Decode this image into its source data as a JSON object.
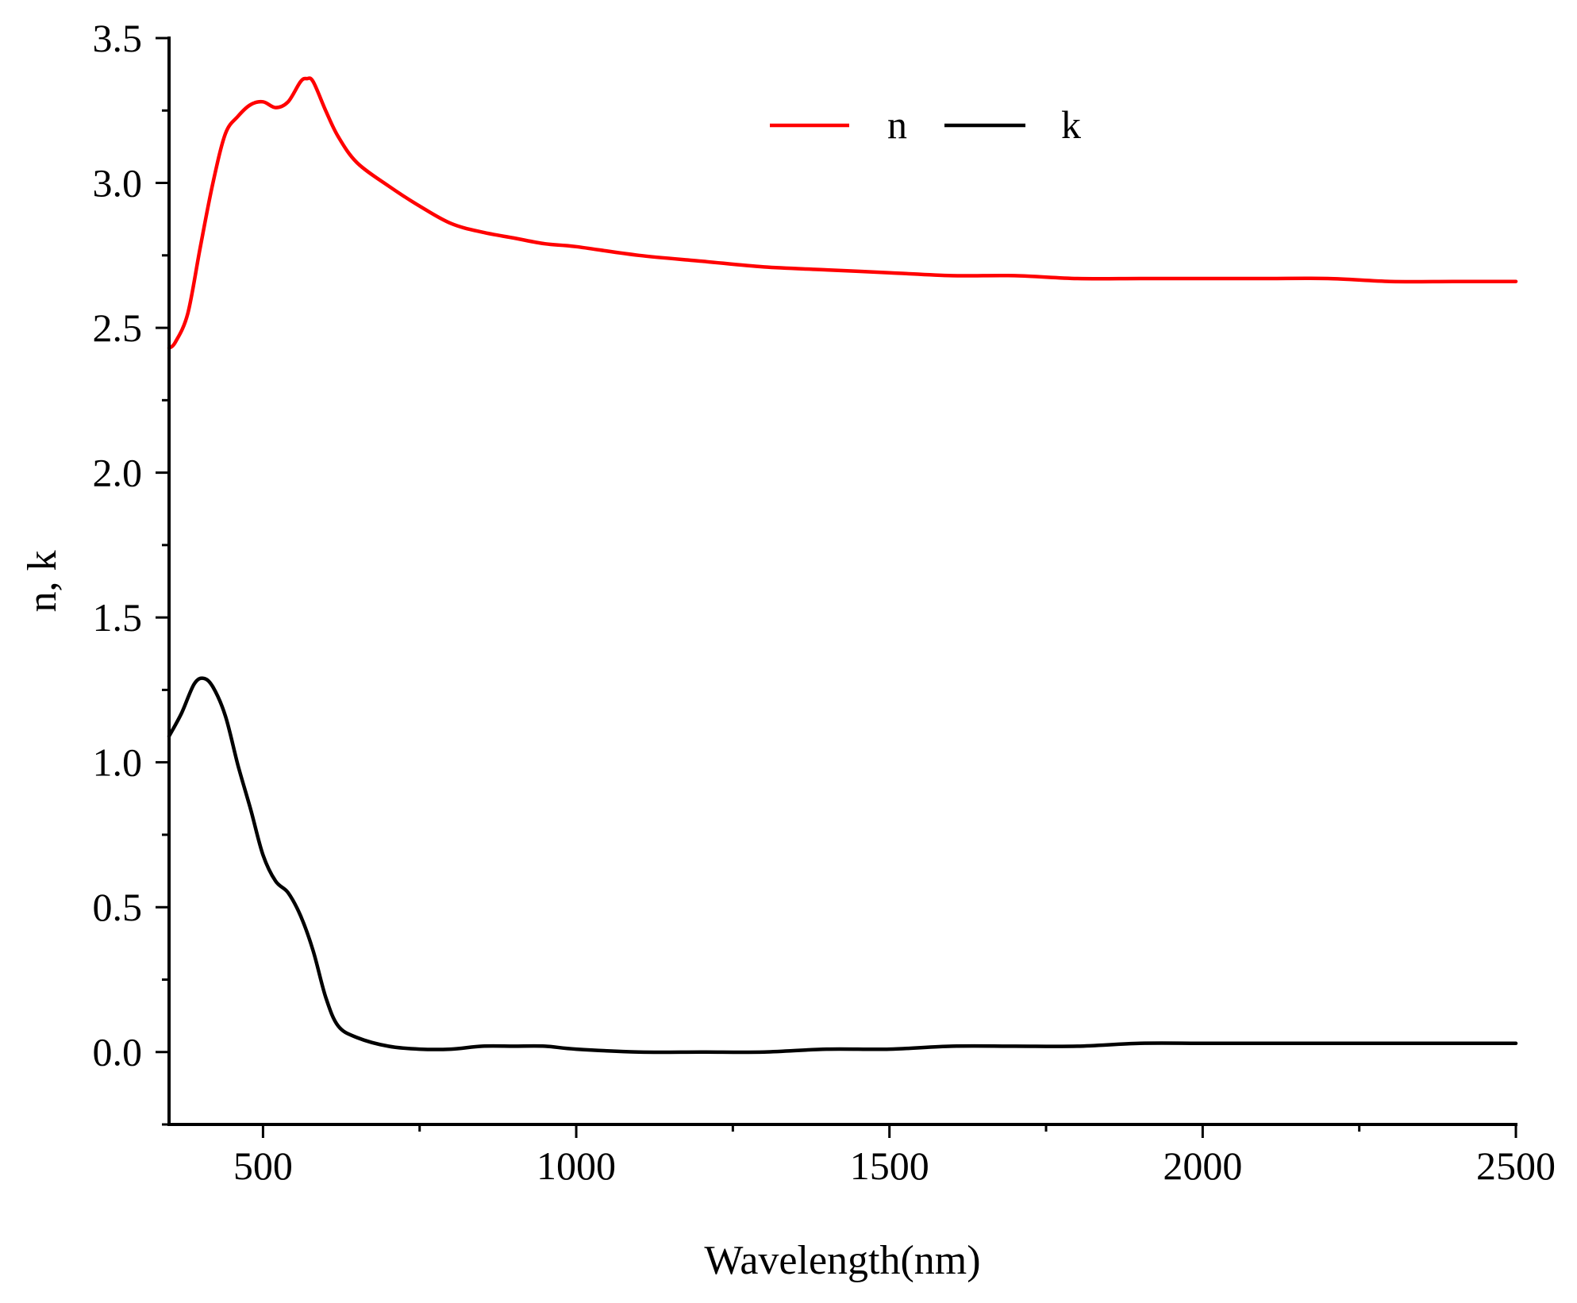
{
  "chart_data": {
    "type": "line",
    "title": "",
    "xlabel": "Wavelength(nm)",
    "ylabel": "n, k",
    "xlim": [
      350,
      2500
    ],
    "ylim": [
      -0.25,
      3.5
    ],
    "xticks": [
      500,
      1000,
      1500,
      2000,
      2500
    ],
    "xtick_labels": [
      "500",
      "1000",
      "1500",
      "2000",
      "2500"
    ],
    "xminor": [
      750,
      1250,
      1750,
      2250
    ],
    "yticks": [
      0.0,
      0.5,
      1.0,
      1.5,
      2.0,
      2.5,
      3.0,
      3.5
    ],
    "ytick_labels": [
      "0.0",
      "0.5",
      "1.0",
      "1.5",
      "2.0",
      "2.5",
      "3.0",
      "3.5"
    ],
    "yminor": [
      -0.25,
      0.25,
      0.75,
      1.25,
      1.75,
      2.25,
      2.75,
      3.25
    ],
    "grid": false,
    "legend_position": "top-center",
    "series": [
      {
        "name": "n",
        "color": "#ff0000",
        "x": [
          350,
          360,
          380,
          400,
          420,
          440,
          460,
          480,
          500,
          520,
          540,
          560,
          570,
          580,
          600,
          620,
          650,
          700,
          750,
          800,
          850,
          900,
          950,
          1000,
          1100,
          1200,
          1300,
          1400,
          1500,
          1600,
          1700,
          1800,
          1900,
          2000,
          2100,
          2200,
          2300,
          2400,
          2500
        ],
        "y": [
          2.43,
          2.45,
          2.55,
          2.78,
          3.0,
          3.17,
          3.23,
          3.27,
          3.28,
          3.26,
          3.28,
          3.35,
          3.36,
          3.35,
          3.25,
          3.16,
          3.07,
          2.99,
          2.92,
          2.86,
          2.83,
          2.81,
          2.79,
          2.78,
          2.75,
          2.73,
          2.71,
          2.7,
          2.69,
          2.68,
          2.68,
          2.67,
          2.67,
          2.67,
          2.67,
          2.67,
          2.66,
          2.66,
          2.66
        ]
      },
      {
        "name": "k",
        "color": "#000000",
        "x": [
          350,
          370,
          390,
          405,
          420,
          440,
          460,
          480,
          500,
          520,
          540,
          560,
          580,
          600,
          620,
          650,
          700,
          750,
          800,
          850,
          900,
          950,
          1000,
          1100,
          1200,
          1300,
          1400,
          1500,
          1600,
          1700,
          1800,
          1900,
          2000,
          2100,
          2200,
          2300,
          2400,
          2500
        ],
        "y": [
          1.09,
          1.17,
          1.27,
          1.29,
          1.26,
          1.16,
          0.99,
          0.84,
          0.68,
          0.59,
          0.55,
          0.47,
          0.35,
          0.19,
          0.09,
          0.05,
          0.02,
          0.01,
          0.01,
          0.02,
          0.02,
          0.02,
          0.01,
          0.0,
          0.0,
          0.0,
          0.01,
          0.01,
          0.02,
          0.02,
          0.02,
          0.03,
          0.03,
          0.03,
          0.03,
          0.03,
          0.03,
          0.03
        ]
      }
    ]
  }
}
